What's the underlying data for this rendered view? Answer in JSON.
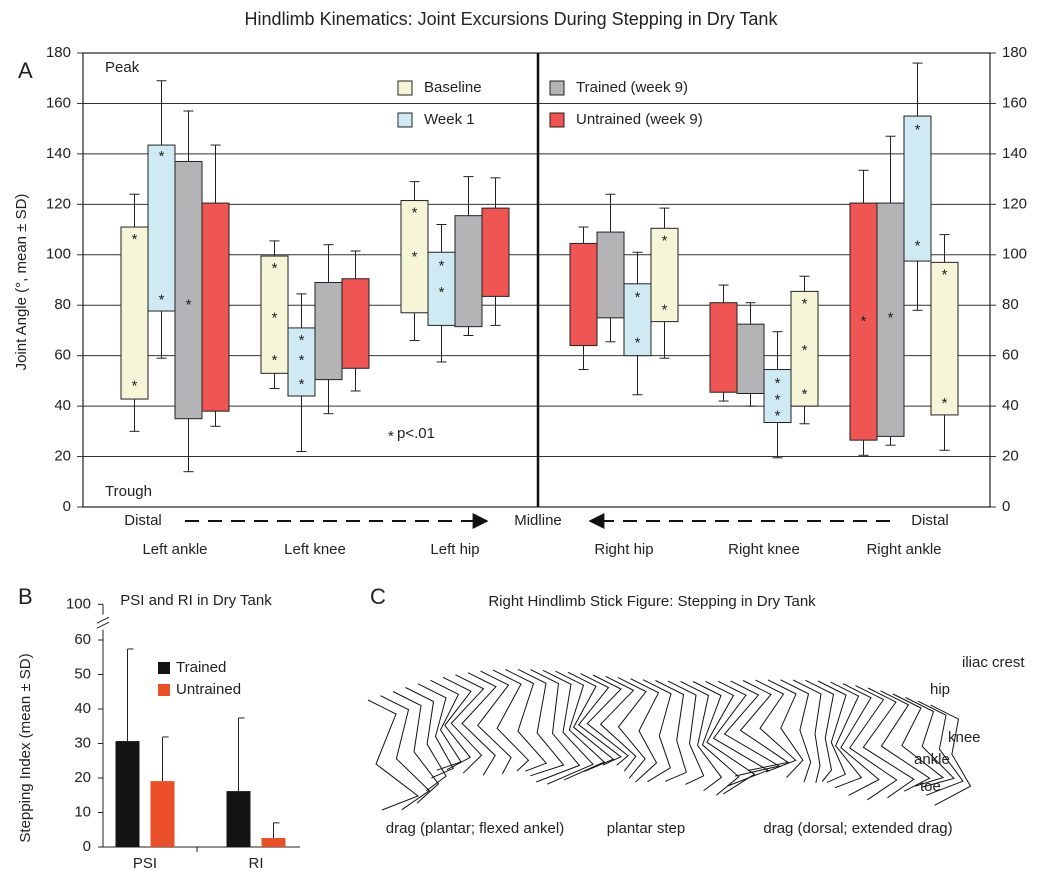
{
  "chart_data": [
    {
      "type": "floating-box",
      "panel_label": "A",
      "title": "Hindlimb Kinematics: Joint Excursions During Stepping in Dry Tank",
      "y_label": "Joint Angle (°, mean ± SD)",
      "peak_label": "Peak",
      "trough_label": "Trough",
      "significance_symbol": "*",
      "significance_text": "p<.01",
      "x_axis_labels": [
        "Distal",
        "Midline",
        "Distal"
      ],
      "categories": [
        "Left ankle",
        "Left knee",
        "Left hip",
        "Right hip",
        "Right knee",
        "Right ankle"
      ],
      "ylim": [
        0,
        180
      ],
      "yticks": [
        0,
        20,
        40,
        60,
        80,
        100,
        120,
        140,
        160,
        180
      ],
      "y2lim": [
        0,
        180
      ],
      "y2ticks": [
        0,
        20,
        40,
        60,
        80,
        100,
        120,
        140,
        160,
        180
      ],
      "grid": true,
      "series": [
        {
          "name": "Baseline",
          "color": "#f6f5d8",
          "low": [
            42.8,
            53,
            77,
            73.5,
            40,
            36.5
          ],
          "high": [
            111,
            99.5,
            121.5,
            110.5,
            85.5,
            97
          ],
          "low_whisker": [
            30,
            47,
            66,
            59,
            33,
            22.5
          ],
          "high_whisker": [
            124,
            105.5,
            129,
            118.5,
            91.5,
            108
          ],
          "stars": [
            [
              107,
              49
            ],
            [
              95.5,
              76,
              59
            ],
            [
              117.5,
              100
            ],
            [
              106.5,
              79
            ],
            [
              81.5,
              63,
              45.5
            ],
            [
              93,
              42
            ]
          ]
        },
        {
          "name": "Week 1",
          "color": "#cfeaf3",
          "low": [
            77.7,
            44,
            72,
            60,
            33.5,
            97.5
          ],
          "high": [
            143.5,
            71,
            101,
            88.5,
            54.5,
            155
          ],
          "low_whisker": [
            59,
            22,
            57.5,
            44.5,
            19.5,
            78
          ],
          "high_whisker": [
            169,
            84.5,
            112,
            101,
            69.5,
            176
          ],
          "stars": [
            [
              140,
              83
            ],
            [
              67,
              59,
              49.5
            ],
            [
              96.5,
              86
            ],
            [
              84,
              66
            ],
            [
              50,
              43.5,
              37
            ],
            [
              150.5,
              104.5
            ]
          ]
        },
        {
          "name": "Trained (week 9)",
          "color": "#b4b4b6",
          "low": [
            35,
            50.5,
            71.5,
            75,
            45,
            28
          ],
          "high": [
            137,
            89,
            115.5,
            109,
            72.5,
            120.5
          ],
          "low_whisker": [
            14,
            37,
            68,
            65.5,
            40,
            24.5
          ],
          "high_whisker": [
            157,
            104,
            131,
            124,
            81,
            147
          ],
          "stars": [
            [
              81
            ],
            [],
            [],
            [],
            [],
            [
              76
            ]
          ]
        },
        {
          "name": "Untrained (week 9)",
          "color": "#ee5553",
          "low": [
            38,
            55,
            83.5,
            64,
            45.5,
            26.5
          ],
          "high": [
            120.5,
            90.5,
            118.5,
            104.5,
            81,
            120.5
          ],
          "low_whisker": [
            32,
            46,
            72,
            54.5,
            42,
            20.5
          ],
          "high_whisker": [
            143.5,
            101.5,
            130.5,
            111,
            88,
            133.5
          ],
          "stars": [
            [],
            [],
            [],
            [],
            [],
            [
              74.5
            ]
          ]
        }
      ]
    },
    {
      "type": "bar",
      "panel_label": "B",
      "title": "PSI and RI in Dry Tank",
      "y_label": "Stepping Index (mean ± SD)",
      "categories": [
        "PSI",
        "RI"
      ],
      "ylim": [
        0,
        100
      ],
      "yticks": [
        0,
        10,
        20,
        30,
        40,
        50,
        60,
        100
      ],
      "y_break": [
        63,
        97
      ],
      "series": [
        {
          "name": "Trained",
          "color": "#141414",
          "values": [
            30.7,
            16.2
          ],
          "errors": [
            26.7,
            21.2
          ]
        },
        {
          "name": "Untrained",
          "color": "#e8502a",
          "values": [
            19.1,
            2.6
          ],
          "errors": [
            12.8,
            4.4
          ]
        }
      ]
    }
  ],
  "diagram": {
    "panel_label": "C",
    "title": "Right Hindlimb Stick Figure: Stepping in Dry Tank",
    "joint_labels": [
      "iliac crest",
      "hip",
      "knee",
      "ankle",
      "toe"
    ],
    "phase_labels": [
      "drag (plantar; flexed ankel)",
      "plantar step",
      "drag (dorsal; extended drag)"
    ]
  }
}
